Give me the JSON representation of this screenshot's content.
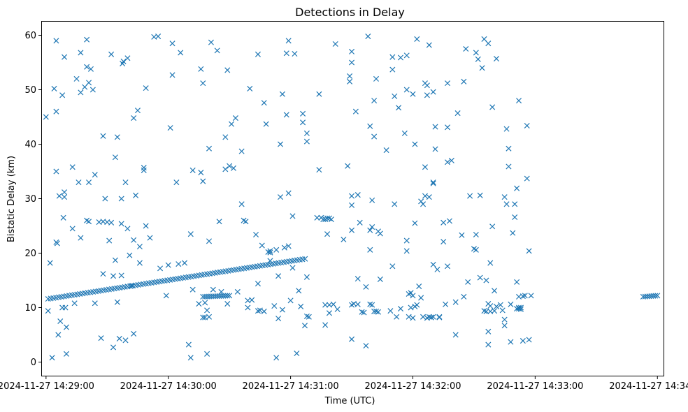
{
  "chart_data": {
    "type": "scatter",
    "title": "Detections in Delay",
    "xlabel": "Time (UTC)",
    "ylabel": "Bistatic Delay (km)",
    "marker": "x",
    "color": "#1f77b4",
    "grid": false,
    "x_unit": "seconds since 2024-11-27 14:29:00",
    "xlim": [
      -2,
      303
    ],
    "ylim": [
      -2.5,
      62.5
    ],
    "x_ticks": [
      {
        "value": 0,
        "label": "2024-11-27 14:29:00"
      },
      {
        "value": 60,
        "label": "2024-11-27 14:30:00"
      },
      {
        "value": 120,
        "label": "2024-11-27 14:31:00"
      },
      {
        "value": 180,
        "label": "2024-11-27 14:32:00"
      },
      {
        "value": 240,
        "label": "2024-11-27 14:33:00"
      },
      {
        "value": 300,
        "label": "2024-11-27 14:34:00"
      }
    ],
    "y_ticks": [
      {
        "value": 0,
        "label": "0"
      },
      {
        "value": 10,
        "label": "10"
      },
      {
        "value": 20,
        "label": "20"
      },
      {
        "value": 30,
        "label": "30"
      },
      {
        "value": 40,
        "label": "40"
      },
      {
        "value": 50,
        "label": "50"
      },
      {
        "value": 60,
        "label": "60"
      }
    ],
    "track_segments": [
      {
        "name": "main track",
        "x_start": 1,
        "x_end": 128,
        "y_start": 11.6,
        "y_end": 19.0,
        "step": 1.3
      },
      {
        "name": "short track A",
        "x_start": 77,
        "x_end": 90,
        "y_start": 12.0,
        "y_end": 12.2,
        "step": 1.0
      },
      {
        "name": "short track B",
        "x_start": 293,
        "x_end": 300,
        "y_start": 12.0,
        "y_end": 12.2,
        "step": 1.0
      }
    ],
    "points": [
      [
        0,
        45
      ],
      [
        1,
        9.4
      ],
      [
        2,
        18.2
      ],
      [
        3,
        0.8
      ],
      [
        4,
        50.2
      ],
      [
        5,
        59
      ],
      [
        5,
        46
      ],
      [
        5,
        35
      ],
      [
        5,
        22
      ],
      [
        5.5,
        21.8
      ],
      [
        6,
        5
      ],
      [
        6.5,
        30.5
      ],
      [
        7,
        7.5
      ],
      [
        8,
        49
      ],
      [
        8,
        10
      ],
      [
        8.5,
        26.5
      ],
      [
        9,
        56
      ],
      [
        9,
        31.2
      ],
      [
        9,
        30.3
      ],
      [
        9.5,
        10
      ],
      [
        10,
        6.4
      ],
      [
        10,
        1.5
      ],
      [
        13,
        24.5
      ],
      [
        13,
        35.8
      ],
      [
        14,
        10.8
      ],
      [
        15,
        52
      ],
      [
        16,
        33
      ],
      [
        17,
        56.8
      ],
      [
        17,
        49.5
      ],
      [
        17,
        22.8
      ],
      [
        19,
        50.5
      ],
      [
        20,
        59.2
      ],
      [
        20,
        54.2
      ],
      [
        20,
        26
      ],
      [
        21,
        51.3
      ],
      [
        21,
        33
      ],
      [
        21,
        25.8
      ],
      [
        22,
        53.8
      ],
      [
        23,
        50
      ],
      [
        24,
        34.4
      ],
      [
        24,
        10.8
      ],
      [
        26,
        25.7
      ],
      [
        27,
        4.4
      ],
      [
        28,
        41.5
      ],
      [
        28,
        25.8
      ],
      [
        28,
        16.2
      ],
      [
        29,
        30
      ],
      [
        30,
        25.7
      ],
      [
        31,
        22.3
      ],
      [
        32,
        25.6
      ],
      [
        32,
        56.5
      ],
      [
        33,
        15.8
      ],
      [
        33,
        2.7
      ],
      [
        34,
        18.7
      ],
      [
        34,
        37.6
      ],
      [
        35,
        41.3
      ],
      [
        35,
        11
      ],
      [
        36,
        4.3
      ],
      [
        37,
        30
      ],
      [
        37,
        25.4
      ],
      [
        37,
        15.9
      ],
      [
        37.5,
        54.8
      ],
      [
        38,
        55.2
      ],
      [
        39,
        33
      ],
      [
        39,
        4
      ],
      [
        40,
        24.5
      ],
      [
        40,
        55.8
      ],
      [
        41,
        19.6
      ],
      [
        42,
        14
      ],
      [
        43,
        22.4
      ],
      [
        43,
        44.8
      ],
      [
        43,
        5.2
      ],
      [
        44,
        30.6
      ],
      [
        45,
        46.2
      ],
      [
        46,
        21.2
      ],
      [
        46,
        18.2
      ],
      [
        48,
        35.7
      ],
      [
        48,
        35.2
      ],
      [
        49,
        50.3
      ],
      [
        49,
        25
      ],
      [
        51,
        22.8
      ],
      [
        53,
        59.7
      ],
      [
        55,
        59.8
      ],
      [
        56,
        17.2
      ],
      [
        59,
        12.2
      ],
      [
        60,
        17.8
      ],
      [
        61,
        43
      ],
      [
        62,
        58.5
      ],
      [
        62,
        52.7
      ],
      [
        64,
        33
      ],
      [
        65,
        18
      ],
      [
        66,
        56.8
      ],
      [
        68,
        18.2
      ],
      [
        70,
        3.2
      ],
      [
        71,
        23.5
      ],
      [
        71,
        0.8
      ],
      [
        72,
        13.3
      ],
      [
        72,
        35.2
      ],
      [
        75,
        10.7
      ],
      [
        76,
        53.8
      ],
      [
        76,
        34.8
      ],
      [
        77,
        51.2
      ],
      [
        77,
        33.2
      ],
      [
        77,
        8.2
      ],
      [
        78,
        8.2
      ],
      [
        78,
        10.9
      ],
      [
        79,
        1.5
      ],
      [
        79,
        9.5
      ],
      [
        80,
        39.2
      ],
      [
        80,
        22.2
      ],
      [
        80,
        8.3
      ],
      [
        81,
        58.7
      ],
      [
        82,
        13.3
      ],
      [
        84,
        57.2
      ],
      [
        85,
        25.8
      ],
      [
        86,
        12.9
      ],
      [
        88,
        41.3
      ],
      [
        88,
        35.4
      ],
      [
        89,
        53.6
      ],
      [
        89,
        10.7
      ],
      [
        90,
        36
      ],
      [
        91,
        43.7
      ],
      [
        92,
        35.6
      ],
      [
        93,
        44.8
      ],
      [
        94,
        12.9
      ],
      [
        96,
        38.7
      ],
      [
        96,
        29
      ],
      [
        97,
        26
      ],
      [
        98,
        25.8
      ],
      [
        99,
        11.3
      ],
      [
        99,
        10
      ],
      [
        100,
        50.2
      ],
      [
        101,
        11.4
      ],
      [
        103,
        23.4
      ],
      [
        104,
        56.5
      ],
      [
        104,
        14.4
      ],
      [
        104,
        9.4
      ],
      [
        105,
        9.5
      ],
      [
        106,
        21.4
      ],
      [
        107,
        47.6
      ],
      [
        107,
        9.3
      ],
      [
        108,
        43.7
      ],
      [
        109,
        20.2
      ],
      [
        110,
        20.1
      ],
      [
        110,
        18.6
      ],
      [
        110,
        20.4
      ],
      [
        112,
        10.3
      ],
      [
        113,
        20.6
      ],
      [
        113,
        0.8
      ],
      [
        114,
        15.8
      ],
      [
        114,
        8
      ],
      [
        115,
        30.3
      ],
      [
        115,
        40
      ],
      [
        116,
        9.6
      ],
      [
        116,
        49.2
      ],
      [
        117,
        21
      ],
      [
        118,
        56.7
      ],
      [
        118,
        45.4
      ],
      [
        119,
        31
      ],
      [
        119,
        21.3
      ],
      [
        119,
        59
      ],
      [
        120,
        11.3
      ],
      [
        121,
        26.8
      ],
      [
        121,
        17.3
      ],
      [
        122,
        56.6
      ],
      [
        123,
        1.6
      ],
      [
        124,
        13.1
      ],
      [
        125,
        10.2
      ],
      [
        126,
        45.6
      ],
      [
        126,
        44
      ],
      [
        127,
        6.7
      ],
      [
        128,
        15.6
      ],
      [
        128,
        42
      ],
      [
        128,
        40.5
      ],
      [
        128,
        8.4
      ],
      [
        129,
        8.3
      ],
      [
        133,
        26.5
      ],
      [
        134,
        49.2
      ],
      [
        134,
        35.3
      ],
      [
        135,
        26.5
      ],
      [
        136,
        26.2
      ],
      [
        137,
        26.2
      ],
      [
        138,
        26.4
      ],
      [
        138,
        23.5
      ],
      [
        139,
        26.4
      ],
      [
        139,
        10.5
      ],
      [
        140,
        26.2
      ],
      [
        137,
        10.5
      ],
      [
        137,
        6.8
      ],
      [
        139,
        9
      ],
      [
        141,
        10.6
      ],
      [
        142,
        58.4
      ],
      [
        143,
        9.7
      ],
      [
        146,
        22.5
      ],
      [
        148,
        36
      ],
      [
        149,
        52.5
      ],
      [
        149,
        51.5
      ],
      [
        150,
        30.5
      ],
      [
        150,
        28.8
      ],
      [
        150,
        24.2
      ],
      [
        150,
        10.5
      ],
      [
        150,
        4.2
      ],
      [
        150,
        55
      ],
      [
        150,
        57
      ],
      [
        151,
        10.7
      ],
      [
        152,
        46
      ],
      [
        153,
        30.7
      ],
      [
        153,
        15.3
      ],
      [
        153,
        10.6
      ],
      [
        154,
        25.6
      ],
      [
        155,
        9.2
      ],
      [
        156,
        9.1
      ],
      [
        157,
        13.8
      ],
      [
        157,
        3
      ],
      [
        158,
        59.8
      ],
      [
        159,
        43.3
      ],
      [
        159,
        24.2
      ],
      [
        159,
        20.6
      ],
      [
        159,
        10.6
      ],
      [
        160,
        24.8
      ],
      [
        160,
        10.5
      ],
      [
        160,
        29.7
      ],
      [
        161,
        9.3
      ],
      [
        161,
        48
      ],
      [
        161,
        41.4
      ],
      [
        162,
        52
      ],
      [
        162,
        9.3
      ],
      [
        163,
        9.2
      ],
      [
        163,
        24
      ],
      [
        164,
        15.2
      ],
      [
        164,
        23.6
      ],
      [
        167,
        38.9
      ],
      [
        169,
        9.4
      ],
      [
        170,
        17.6
      ],
      [
        170,
        53.7
      ],
      [
        170,
        56
      ],
      [
        171,
        48.8
      ],
      [
        171,
        29
      ],
      [
        172,
        8.3
      ],
      [
        173,
        46.7
      ],
      [
        174,
        55.9
      ],
      [
        174,
        9.8
      ],
      [
        176,
        42
      ],
      [
        177,
        50
      ],
      [
        177,
        56.3
      ],
      [
        177,
        22.3
      ],
      [
        177,
        20.4
      ],
      [
        178,
        12.5
      ],
      [
        178,
        8.3
      ],
      [
        179,
        12.7
      ],
      [
        179,
        10
      ],
      [
        180,
        12.2
      ],
      [
        180,
        8.1
      ],
      [
        180,
        49.2
      ],
      [
        181,
        10.2
      ],
      [
        181,
        25.5
      ],
      [
        181,
        40
      ],
      [
        182,
        59.3
      ],
      [
        182,
        10.5
      ],
      [
        183,
        13.9
      ],
      [
        184,
        11.8
      ],
      [
        184,
        29.5
      ],
      [
        185,
        29
      ],
      [
        185,
        8.3
      ],
      [
        186,
        30.5
      ],
      [
        186,
        35.8
      ],
      [
        186,
        51.2
      ],
      [
        187,
        50.8
      ],
      [
        187,
        49
      ],
      [
        187,
        8.1
      ],
      [
        188,
        58.2
      ],
      [
        188,
        30.3
      ],
      [
        188,
        8.3
      ],
      [
        189,
        8.2
      ],
      [
        189,
        8.2
      ],
      [
        190,
        8.3
      ],
      [
        190,
        17.9
      ],
      [
        190,
        33
      ],
      [
        190,
        32.8
      ],
      [
        190,
        49.6
      ],
      [
        191,
        39.1
      ],
      [
        191,
        43.2
      ],
      [
        192,
        17
      ],
      [
        193,
        8.2
      ],
      [
        193,
        8.3
      ],
      [
        195,
        22.1
      ],
      [
        195,
        25.6
      ],
      [
        196,
        10.6
      ],
      [
        197,
        17.6
      ],
      [
        197,
        43.1
      ],
      [
        197,
        51.2
      ],
      [
        197,
        36.7
      ],
      [
        198,
        25.9
      ],
      [
        199,
        37
      ],
      [
        201,
        11
      ],
      [
        201,
        5
      ],
      [
        202,
        45.7
      ],
      [
        204,
        23.3
      ],
      [
        205,
        12
      ],
      [
        205,
        51.5
      ],
      [
        206,
        57.5
      ],
      [
        207,
        14.7
      ],
      [
        208,
        30.5
      ],
      [
        210,
        20.8
      ],
      [
        211,
        20.6
      ],
      [
        211,
        23.4
      ],
      [
        211,
        56.8
      ],
      [
        212,
        55.6
      ],
      [
        213,
        30.6
      ],
      [
        213,
        15.5
      ],
      [
        214,
        54
      ],
      [
        215,
        59.3
      ],
      [
        215,
        9.4
      ],
      [
        216,
        15
      ],
      [
        216,
        9.3
      ],
      [
        217,
        58.5
      ],
      [
        217,
        10.7
      ],
      [
        217,
        5.6
      ],
      [
        217,
        3.2
      ],
      [
        218,
        18.2
      ],
      [
        218,
        9.3
      ],
      [
        218,
        10.3
      ],
      [
        219,
        46.8
      ],
      [
        219,
        24.9
      ],
      [
        220,
        9.4
      ],
      [
        220,
        13.1
      ],
      [
        221,
        55.7
      ],
      [
        221,
        10.2
      ],
      [
        223,
        10.5
      ],
      [
        224,
        9.5
      ],
      [
        225,
        30.3
      ],
      [
        225,
        6.7
      ],
      [
        225,
        7.8
      ],
      [
        226,
        42.8
      ],
      [
        226,
        29
      ],
      [
        227,
        35.9
      ],
      [
        227,
        39.2
      ],
      [
        228,
        3.7
      ],
      [
        228,
        10.6
      ],
      [
        229,
        23.7
      ],
      [
        230,
        26.6
      ],
      [
        230,
        29
      ],
      [
        231,
        31.9
      ],
      [
        231,
        14.7
      ],
      [
        231,
        9.8
      ],
      [
        232,
        48
      ],
      [
        232,
        10
      ],
      [
        232,
        9.8
      ],
      [
        232,
        12
      ],
      [
        233,
        9.7
      ],
      [
        233,
        10
      ],
      [
        234,
        3.9
      ],
      [
        234,
        12.1
      ],
      [
        235,
        12.2
      ],
      [
        236,
        43.4
      ],
      [
        236,
        33.7
      ],
      [
        237,
        4.1
      ],
      [
        237,
        20.4
      ],
      [
        238,
        12.2
      ]
    ]
  }
}
